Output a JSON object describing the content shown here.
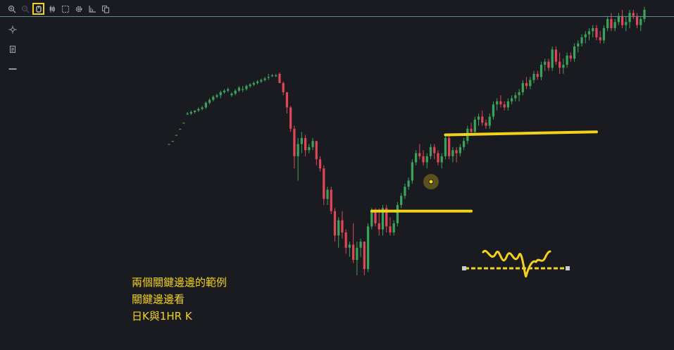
{
  "toolbar": {
    "buttons": [
      {
        "name": "zoom-in-icon",
        "state": "normal"
      },
      {
        "name": "zoom-out-icon",
        "state": "disabled"
      },
      {
        "name": "cursor-mode-icon",
        "state": "active"
      },
      {
        "name": "candlestick-icon",
        "state": "normal"
      },
      {
        "name": "selection-box-icon",
        "state": "normal"
      },
      {
        "name": "gear-icon",
        "state": "normal"
      },
      {
        "name": "ruler-icon",
        "state": "normal"
      },
      {
        "name": "copy-icon",
        "state": "normal"
      }
    ]
  },
  "side_tools": [
    {
      "name": "crosshair-icon"
    },
    {
      "name": "notepad-icon"
    },
    {
      "name": "horizontal-line-icon"
    }
  ],
  "annotation": {
    "line1": "兩個關鍵邊邊的範例",
    "line2": "關鍵邊邊看",
    "line3": "日K與1HR K"
  },
  "colors": {
    "background": "#1a1b21",
    "up": "#3aa35a",
    "down": "#e04656",
    "highlight": "#f2d21b",
    "toolbar_icon": "#9aa0aa",
    "top_line": "#5b8a9a"
  },
  "chart_data": {
    "type": "candlestick",
    "title": "",
    "xlabel": "",
    "ylabel": "",
    "axes_visible": false,
    "grid": false,
    "ylim": [
      0,
      100
    ],
    "candles": [
      [
        56,
        56,
        56,
        56
      ],
      [
        57,
        57,
        57,
        57
      ],
      [
        59,
        59,
        59,
        59
      ],
      [
        61,
        61,
        61,
        61
      ],
      [
        63,
        63,
        63,
        63
      ],
      [
        66,
        66.5,
        65.5,
        66
      ],
      [
        66,
        67,
        65.5,
        66.5
      ],
      [
        66.5,
        67,
        66,
        67
      ],
      [
        67,
        68,
        66.5,
        67.5
      ],
      [
        67.5,
        68.5,
        67,
        68
      ],
      [
        68,
        70,
        67.5,
        69.5
      ],
      [
        69.5,
        71,
        69,
        70.5
      ],
      [
        70.5,
        72,
        70,
        71.5
      ],
      [
        71.5,
        72.5,
        71,
        72
      ],
      [
        72,
        73.5,
        71,
        73
      ],
      [
        73,
        74,
        72.5,
        73.5
      ],
      [
        73.5,
        74.5,
        73,
        74
      ],
      [
        72,
        73,
        71.5,
        72.5
      ],
      [
        72.5,
        74,
        72,
        73.5
      ],
      [
        73.5,
        75,
        73,
        74.5
      ],
      [
        74,
        75,
        73,
        74
      ],
      [
        74,
        75.5,
        73.5,
        75
      ],
      [
        75,
        76,
        74.5,
        75.5
      ],
      [
        75.5,
        76.5,
        75,
        76
      ],
      [
        76,
        77,
        75.5,
        76.5
      ],
      [
        76.5,
        77.5,
        76,
        77
      ],
      [
        77,
        78,
        76.5,
        77.5
      ],
      [
        78,
        79,
        77,
        78
      ],
      [
        78.5,
        79,
        78,
        78.5
      ],
      [
        78.5,
        79,
        78,
        78.5
      ],
      [
        79,
        79.5,
        76,
        76
      ],
      [
        76,
        76.5,
        72,
        73
      ],
      [
        73,
        73,
        66,
        68
      ],
      [
        68,
        68.5,
        60,
        61
      ],
      [
        61,
        62,
        48,
        52
      ],
      [
        52,
        58,
        44,
        56
      ],
      [
        56,
        60,
        53,
        58
      ],
      [
        58,
        59,
        52,
        54
      ],
      [
        54,
        56,
        53,
        55
      ],
      [
        55,
        58,
        54,
        57
      ],
      [
        57,
        57,
        49,
        51
      ],
      [
        51,
        52,
        47,
        48
      ],
      [
        48,
        49,
        36,
        38
      ],
      [
        38,
        42,
        36,
        41
      ],
      [
        41,
        42,
        33,
        34
      ],
      [
        34,
        35,
        24,
        26
      ],
      [
        26,
        32,
        22,
        31
      ],
      [
        31,
        34,
        25,
        27
      ],
      [
        27,
        28,
        20,
        22
      ],
      [
        22,
        24,
        19,
        23
      ],
      [
        23,
        30,
        17,
        18
      ],
      [
        18,
        24,
        13,
        22
      ],
      [
        22,
        25,
        19,
        24
      ],
      [
        24,
        24,
        13,
        15
      ],
      [
        15,
        30,
        14,
        29
      ],
      [
        29,
        35,
        28,
        34
      ],
      [
        34,
        35,
        29,
        30
      ],
      [
        30,
        35,
        26,
        28
      ],
      [
        28,
        36,
        26,
        35
      ],
      [
        35,
        36,
        27,
        29
      ],
      [
        29,
        32,
        26,
        27
      ],
      [
        27,
        31,
        26,
        30
      ],
      [
        30,
        37,
        29,
        36
      ],
      [
        36,
        40,
        35,
        39
      ],
      [
        39,
        43,
        38,
        42
      ],
      [
        42,
        45,
        41,
        44
      ],
      [
        44,
        51,
        43,
        50
      ],
      [
        50,
        54,
        49,
        53
      ],
      [
        53,
        56,
        51,
        52
      ],
      [
        52,
        54,
        49,
        50
      ],
      [
        50,
        53,
        48,
        52
      ],
      [
        52,
        56,
        51,
        55
      ],
      [
        55,
        56,
        51,
        53
      ],
      [
        53,
        54,
        49,
        50
      ],
      [
        50,
        53,
        48,
        52
      ],
      [
        52,
        59,
        51,
        58
      ],
      [
        58,
        59,
        51,
        52
      ],
      [
        52,
        55,
        50,
        54
      ],
      [
        54,
        55,
        50,
        53
      ],
      [
        53,
        56,
        52,
        55
      ],
      [
        55,
        58,
        54,
        57
      ],
      [
        57,
        62,
        56,
        61
      ],
      [
        61,
        63,
        59,
        60
      ],
      [
        60,
        65,
        59,
        64
      ],
      [
        64,
        66,
        62,
        65
      ],
      [
        65,
        67,
        62,
        63
      ],
      [
        63,
        64,
        61,
        62
      ],
      [
        62,
        66,
        61,
        65
      ],
      [
        65,
        70,
        64,
        69
      ],
      [
        69,
        71,
        67,
        70
      ],
      [
        70,
        72,
        68,
        69
      ],
      [
        69,
        70,
        67,
        68
      ],
      [
        68,
        71,
        67,
        70
      ],
      [
        70,
        72,
        69,
        71
      ],
      [
        71,
        73,
        70,
        72
      ],
      [
        72,
        74,
        70,
        73
      ],
      [
        73,
        77,
        72,
        76
      ],
      [
        76,
        78,
        74,
        75
      ],
      [
        75,
        78,
        74,
        77
      ],
      [
        77,
        80,
        76,
        79
      ],
      [
        79,
        80,
        77,
        78
      ],
      [
        78,
        83,
        77,
        82
      ],
      [
        82,
        84,
        80,
        83
      ],
      [
        83,
        84,
        80,
        81
      ],
      [
        81,
        88,
        80,
        87
      ],
      [
        87,
        88,
        82,
        83
      ],
      [
        83,
        86,
        79,
        81
      ],
      [
        81,
        84,
        79,
        82
      ],
      [
        82,
        86,
        81,
        85
      ],
      [
        85,
        86,
        83,
        84
      ],
      [
        84,
        89,
        83,
        88
      ],
      [
        88,
        90,
        86,
        89
      ],
      [
        89,
        92,
        88,
        91
      ],
      [
        91,
        93,
        89,
        92
      ],
      [
        92,
        94,
        90,
        93
      ],
      [
        93,
        95,
        91,
        94
      ],
      [
        94,
        95,
        90,
        91
      ],
      [
        91,
        93,
        89,
        90
      ],
      [
        90,
        95,
        89,
        94
      ],
      [
        94,
        98,
        93,
        97
      ],
      [
        97,
        99,
        93,
        94
      ],
      [
        94,
        97,
        93,
        96
      ],
      [
        96,
        99,
        95,
        98
      ],
      [
        98,
        100,
        94,
        95
      ],
      [
        95,
        98,
        93,
        96
      ],
      [
        96,
        100,
        94,
        99
      ],
      [
        99,
        100,
        97,
        98
      ],
      [
        98,
        99,
        94,
        95
      ],
      [
        95,
        98,
        93,
        97
      ],
      [
        97,
        101,
        96,
        100
      ]
    ],
    "support_lines": [
      {
        "from": [
          75,
          59
        ],
        "to": [
          116,
          60
        ]
      },
      {
        "from": [
          55,
          34
        ],
        "to": [
          82,
          34
        ]
      }
    ]
  }
}
